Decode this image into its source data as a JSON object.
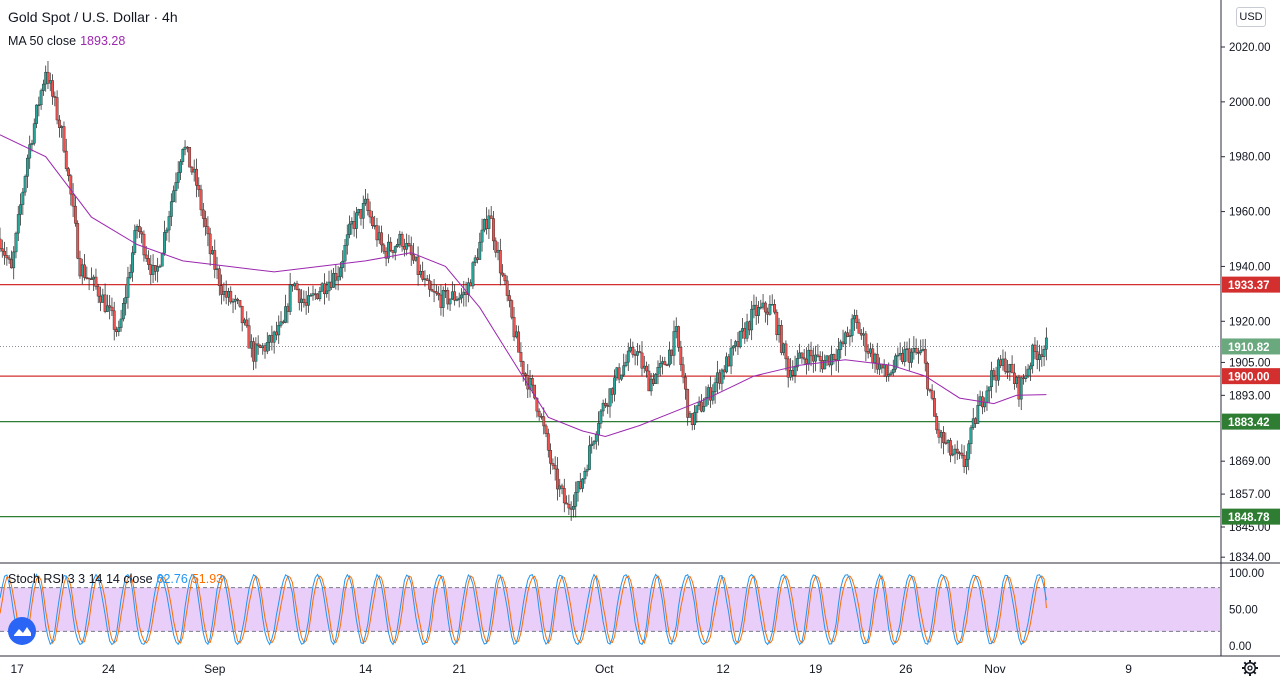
{
  "header": {
    "title": "Gold Spot / U.S. Dollar · 4h",
    "ma_label": "MA 50 close",
    "ma_value": "1893.28",
    "currency": "USD"
  },
  "indicator": {
    "label": "Stoch RSI 3 3 14 14 close",
    "k_value": "62.76",
    "d_value": "51.93",
    "ticks": [
      "100.00",
      "50.00",
      "0.00"
    ],
    "tick_values": [
      100,
      50,
      0
    ],
    "upper_band": 80,
    "lower_band": 20
  },
  "colors": {
    "up": "#26a69a",
    "down": "#ef5350",
    "ma": "#9c27b0",
    "resistance": "#d32f2f",
    "support": "#2e7d32",
    "last_price": "#6aa87e",
    "stoch_k": "#2196f3",
    "stoch_d": "#ff6d00",
    "band_fill": "#e1bef7"
  },
  "chart_data": {
    "type": "candlestick",
    "title": "Gold Spot / U.S. Dollar · 4h",
    "y_ticks": [
      2020,
      2000,
      1980,
      1960,
      1940,
      1920,
      1905,
      1893,
      1869,
      1857,
      1845,
      1834
    ],
    "y_tick_labels": [
      "2020.00",
      "2000.00",
      "1980.00",
      "1960.00",
      "1940.00",
      "1920.00",
      "1905.00",
      "1893.00",
      "1869.00",
      "1857.00",
      "1845.00",
      "1834.00"
    ],
    "x_ticks": [
      "17",
      "24",
      "Sep",
      "14",
      "21",
      "Oct",
      "12",
      "19",
      "26",
      "Nov",
      "9"
    ],
    "levels": [
      {
        "label": "1933.37",
        "value": 1933.37,
        "kind": "resistance"
      },
      {
        "label": "1900.00",
        "value": 1900.0,
        "kind": "resistance"
      },
      {
        "label": "1883.42",
        "value": 1883.42,
        "kind": "support"
      },
      {
        "label": "1848.78",
        "value": 1848.78,
        "kind": "support"
      }
    ],
    "last_price": {
      "label": "1910.82",
      "value": 1910.82
    },
    "close_path": [
      [
        0,
        1950
      ],
      [
        5,
        1938
      ],
      [
        12,
        1980
      ],
      [
        20,
        2012
      ],
      [
        28,
        1985
      ],
      [
        35,
        1940
      ],
      [
        44,
        1930
      ],
      [
        52,
        1915
      ],
      [
        60,
        1955
      ],
      [
        68,
        1935
      ],
      [
        74,
        1960
      ],
      [
        80,
        1985
      ],
      [
        86,
        1970
      ],
      [
        92,
        1945
      ],
      [
        98,
        1930
      ],
      [
        104,
        1925
      ],
      [
        111,
        1908
      ],
      [
        118,
        1912
      ],
      [
        124,
        1918
      ],
      [
        128,
        1935
      ],
      [
        134,
        1925
      ],
      [
        140,
        1932
      ],
      [
        148,
        1938
      ],
      [
        154,
        1955
      ],
      [
        160,
        1962
      ],
      [
        168,
        1945
      ],
      [
        176,
        1950
      ],
      [
        182,
        1940
      ],
      [
        188,
        1930
      ],
      [
        194,
        1928
      ],
      [
        204,
        1930
      ],
      [
        214,
        1960
      ],
      [
        222,
        1928
      ],
      [
        228,
        1905
      ],
      [
        236,
        1888
      ],
      [
        242,
        1865
      ],
      [
        248,
        1852
      ],
      [
        254,
        1860
      ],
      [
        262,
        1885
      ],
      [
        270,
        1900
      ],
      [
        278,
        1910
      ],
      [
        284,
        1898
      ],
      [
        290,
        1903
      ],
      [
        296,
        1915
      ],
      [
        302,
        1883
      ],
      [
        310,
        1893
      ],
      [
        316,
        1902
      ],
      [
        322,
        1910
      ],
      [
        330,
        1923
      ],
      [
        338,
        1925
      ],
      [
        345,
        1902
      ],
      [
        353,
        1908
      ],
      [
        360,
        1905
      ],
      [
        368,
        1910
      ],
      [
        374,
        1920
      ],
      [
        380,
        1910
      ],
      [
        388,
        1900
      ],
      [
        396,
        1908
      ],
      [
        404,
        1908
      ],
      [
        410,
        1880
      ],
      [
        416,
        1872
      ],
      [
        422,
        1868
      ],
      [
        428,
        1888
      ],
      [
        434,
        1900
      ],
      [
        440,
        1905
      ],
      [
        446,
        1895
      ],
      [
        452,
        1908
      ],
      [
        458,
        1910.82
      ]
    ],
    "ma50_path": [
      [
        0,
        1988
      ],
      [
        20,
        1980
      ],
      [
        40,
        1958
      ],
      [
        60,
        1948
      ],
      [
        80,
        1942
      ],
      [
        100,
        1940
      ],
      [
        120,
        1938
      ],
      [
        140,
        1940
      ],
      [
        160,
        1942
      ],
      [
        180,
        1945
      ],
      [
        195,
        1940
      ],
      [
        210,
        1925
      ],
      [
        225,
        1905
      ],
      [
        240,
        1885
      ],
      [
        255,
        1880
      ],
      [
        265,
        1878
      ],
      [
        280,
        1882
      ],
      [
        295,
        1887
      ],
      [
        310,
        1892
      ],
      [
        330,
        1900
      ],
      [
        350,
        1904
      ],
      [
        370,
        1906
      ],
      [
        390,
        1904
      ],
      [
        405,
        1900
      ],
      [
        420,
        1892
      ],
      [
        435,
        1890
      ],
      [
        445,
        1893
      ],
      [
        458,
        1893.28
      ]
    ],
    "x_range": [
      0,
      534
    ],
    "x_tick_positions": [
      7.5,
      47.5,
      94,
      160,
      201,
      264.5,
      316.5,
      357,
      396.5,
      435.5,
      494
    ]
  }
}
